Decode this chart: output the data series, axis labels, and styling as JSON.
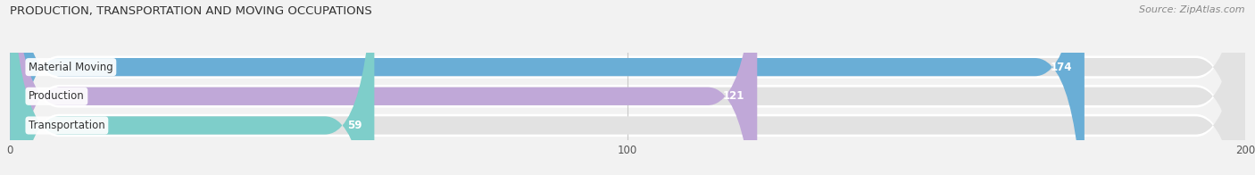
{
  "title": "PRODUCTION, TRANSPORTATION AND MOVING OCCUPATIONS",
  "source": "Source: ZipAtlas.com",
  "categories": [
    "Material Moving",
    "Production",
    "Transportation"
  ],
  "values": [
    174,
    121,
    59
  ],
  "bar_colors": [
    "#6aaed6",
    "#c0a8d8",
    "#7ececa"
  ],
  "xlim": [
    0,
    200
  ],
  "xticks": [
    0,
    100,
    200
  ],
  "label_color_inside": "#ffffff",
  "bar_height": 0.62,
  "background_color": "#f2f2f2",
  "bar_background_color": "#e2e2e2",
  "row_background": "#ffffff"
}
